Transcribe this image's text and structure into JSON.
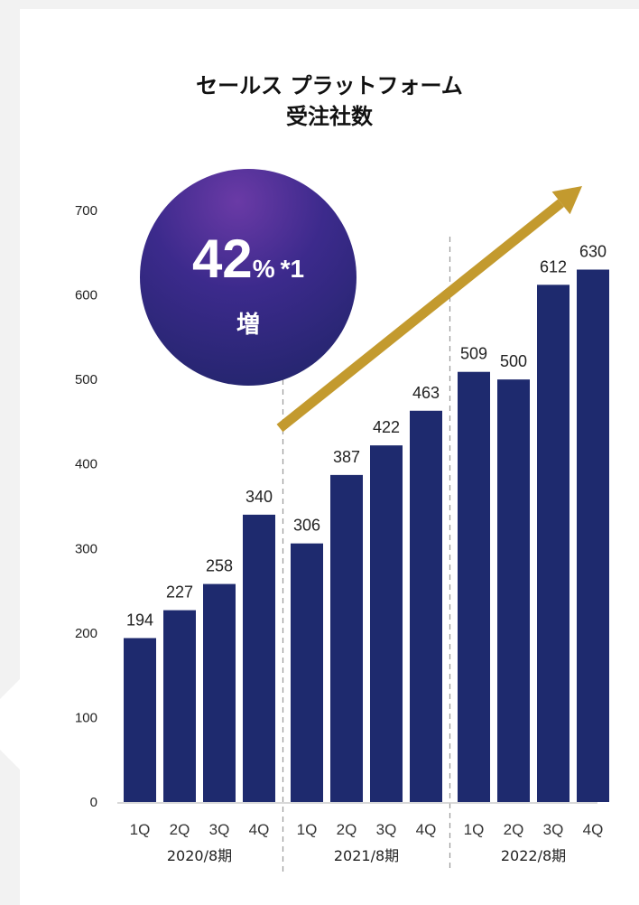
{
  "title_lines": [
    "セールス プラットフォーム",
    "受注社数"
  ],
  "badge": {
    "value": "42",
    "unit": "%",
    "note": "*1",
    "label": "増"
  },
  "colors": {
    "bar": "#1e2a6e",
    "arrow": "#c39a2e",
    "background": "#f2f2f2"
  },
  "chart_data": {
    "type": "bar",
    "title": "セールス プラットフォーム 受注社数",
    "categories": [
      "1Q",
      "2Q",
      "3Q",
      "4Q",
      "1Q",
      "2Q",
      "3Q",
      "4Q",
      "1Q",
      "2Q",
      "3Q",
      "4Q"
    ],
    "groups": [
      {
        "label": "2020/8期",
        "quarters": [
          "1Q",
          "2Q",
          "3Q",
          "4Q"
        ],
        "values": [
          194,
          227,
          258,
          340
        ]
      },
      {
        "label": "2021/8期",
        "quarters": [
          "1Q",
          "2Q",
          "3Q",
          "4Q"
        ],
        "values": [
          306,
          387,
          422,
          463
        ]
      },
      {
        "label": "2022/8期",
        "quarters": [
          "1Q",
          "2Q",
          "3Q",
          "4Q"
        ],
        "values": [
          509,
          500,
          612,
          630
        ]
      }
    ],
    "values": [
      194,
      227,
      258,
      340,
      306,
      387,
      422,
      463,
      509,
      500,
      612,
      630
    ],
    "ylim": [
      0,
      700
    ],
    "yticks": [
      0,
      100,
      200,
      300,
      400,
      500,
      600,
      700
    ],
    "grid": false,
    "legend": "none",
    "annotations": [
      "増加トレンド矢印"
    ]
  }
}
